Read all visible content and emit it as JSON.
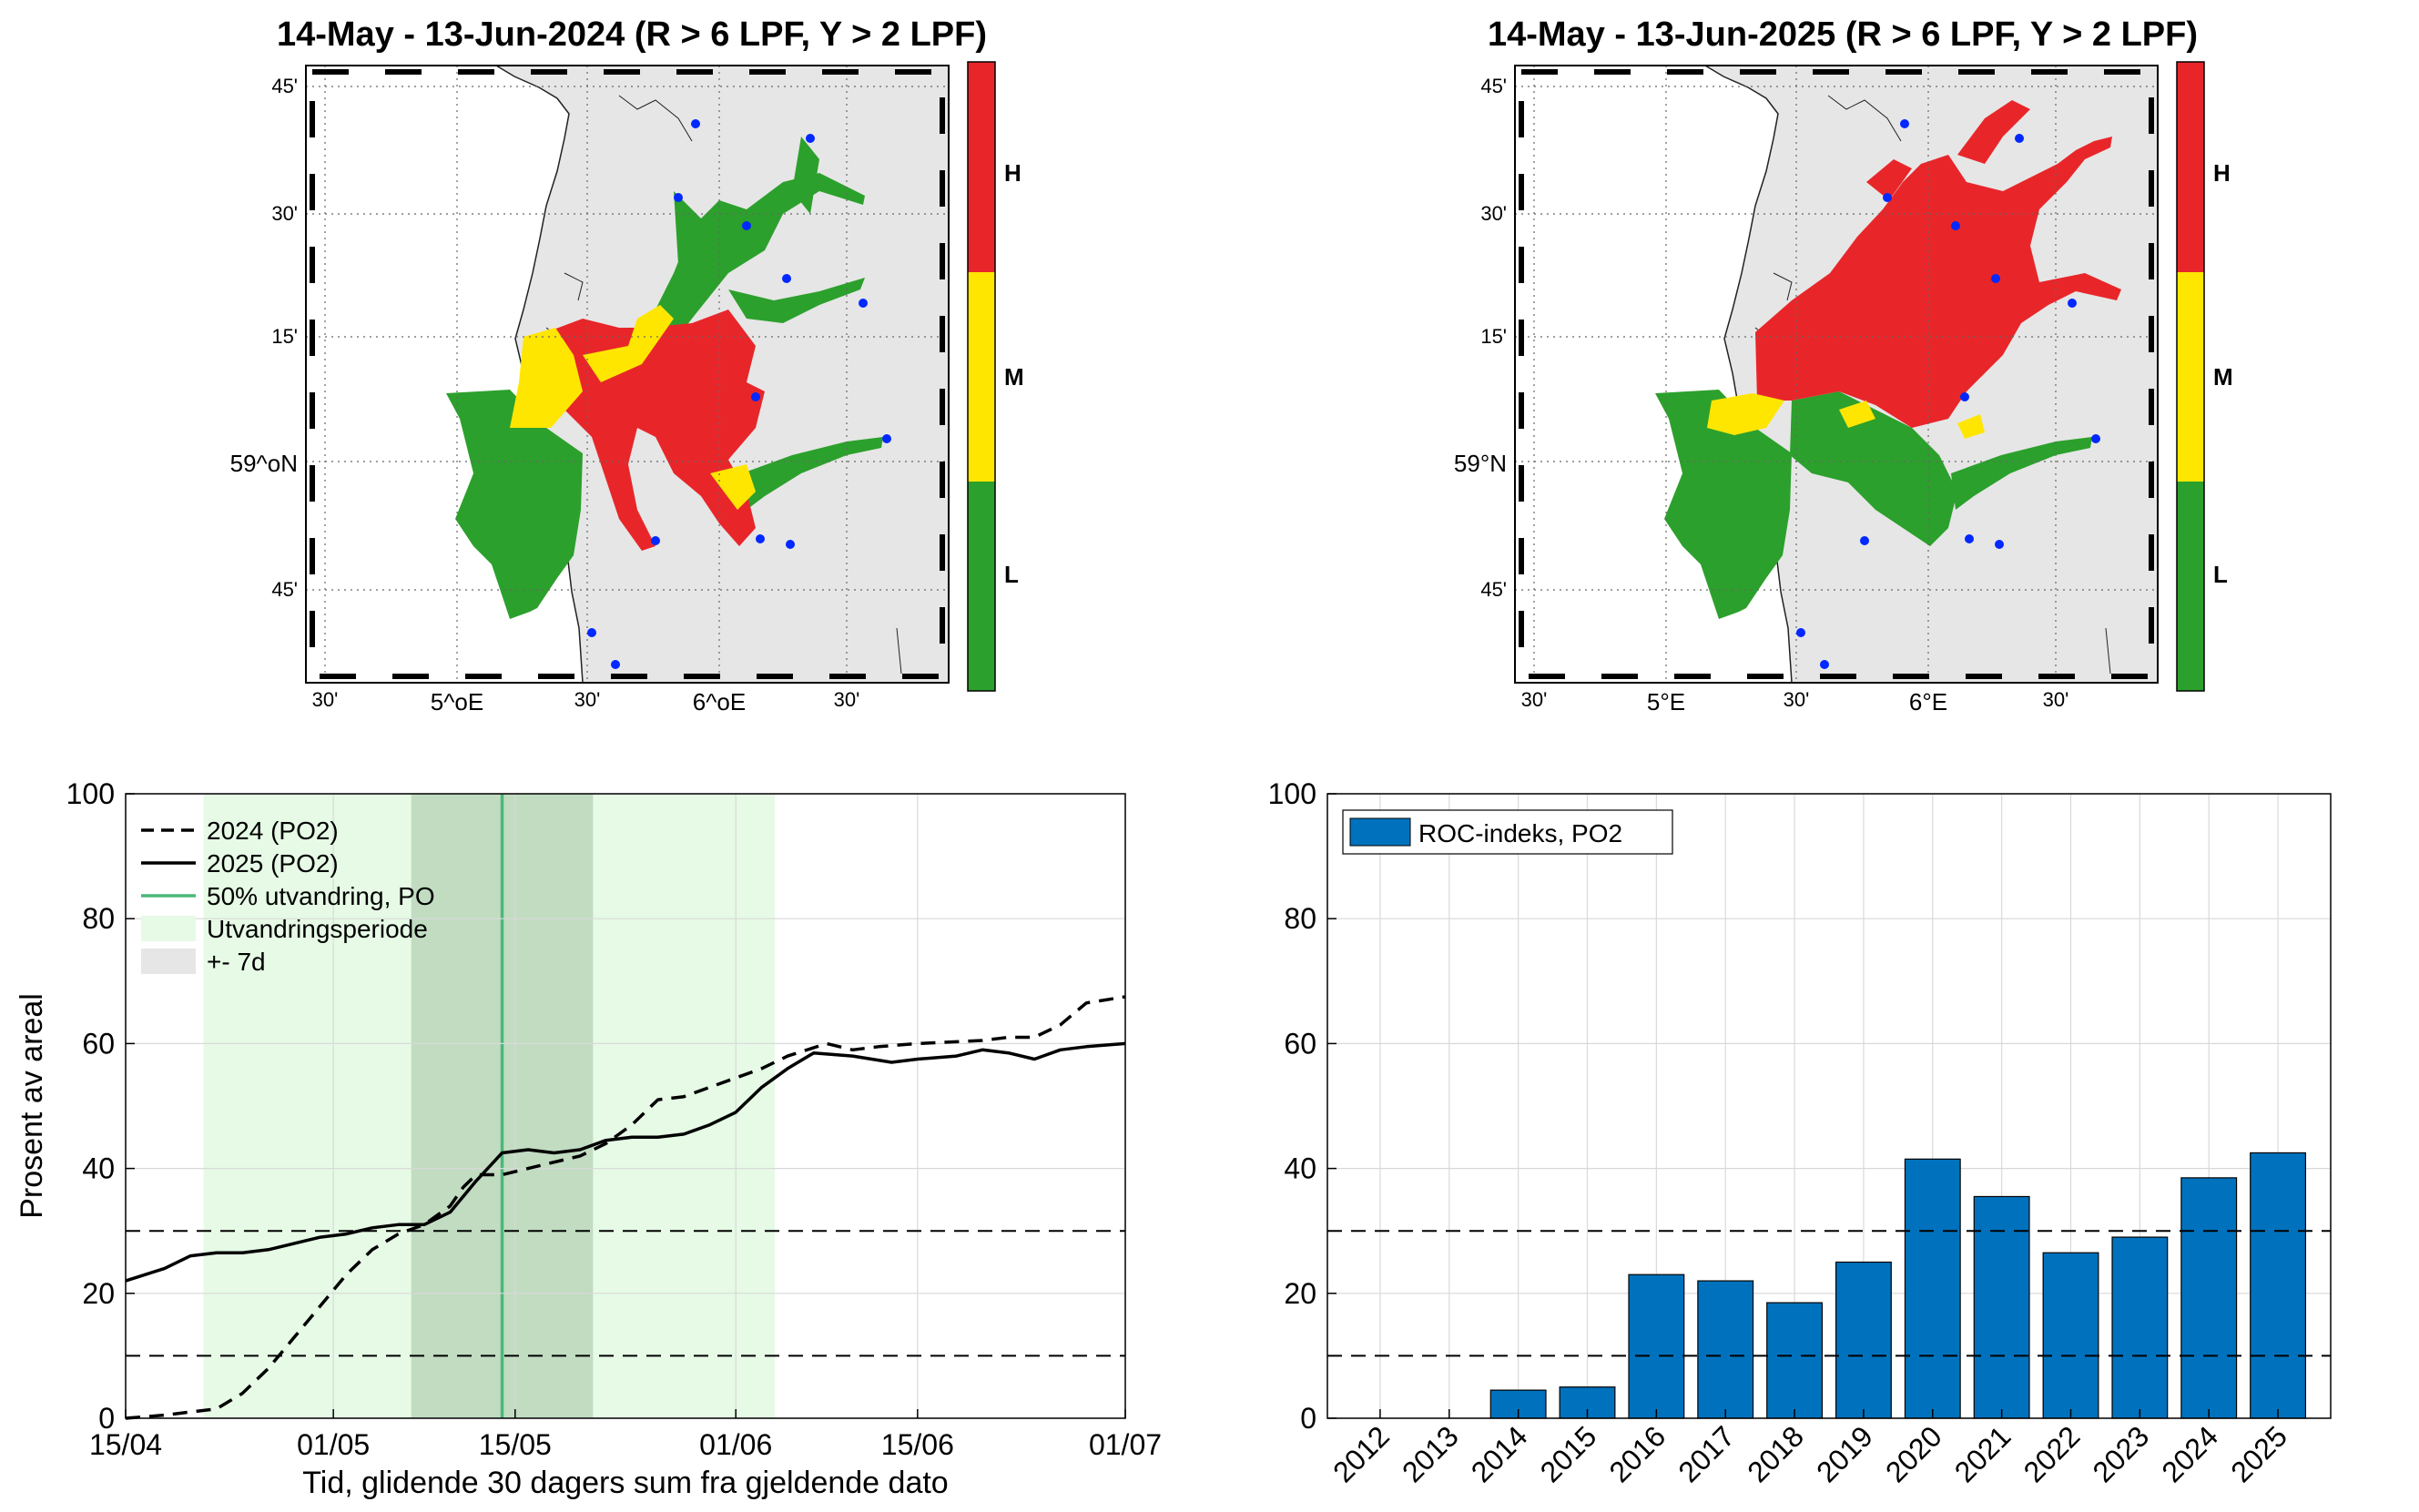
{
  "maps": [
    {
      "title": "14-May - 13-Jun-2024  (R > 6 LPF, Y > 2 LPF)",
      "lat_labels": [
        "45'",
        "30'",
        "15'",
        "59^oN",
        "45'"
      ],
      "lon_labels": [
        "30'",
        "5^oE",
        "30'",
        "6^oE",
        "30'"
      ],
      "colorbar_labels": [
        "H",
        "M",
        "L"
      ]
    },
    {
      "title": "14-May - 13-Jun-2025  (R > 6 LPF, Y > 2 LPF)",
      "lat_labels": [
        "45'",
        "30'",
        "15'",
        "59°N",
        "45'"
      ],
      "lon_labels": [
        "30'",
        "5°E",
        "30'",
        "6°E",
        "30'"
      ],
      "colorbar_labels": [
        "H",
        "M",
        "L"
      ]
    }
  ],
  "colors": {
    "red": "#e8262a",
    "yellow": "#ffe600",
    "green": "#2ca02c",
    "land": "#e6e6e6",
    "bar": "#0072bd",
    "outmigration": "#e6fae6",
    "pm7d": "#b4d2b4",
    "median_line": "#4cb87a"
  },
  "chart_data": [
    {
      "type": "line",
      "xlabel": "Tid, glidende 30 dagers sum fra gjeldende dato",
      "ylabel": "Prosent av areal",
      "x_ticks": [
        "15/04",
        "01/05",
        "15/05",
        "01/06",
        "15/06",
        "01/07"
      ],
      "ylim": [
        0,
        100
      ],
      "y_ticks": [
        0,
        20,
        40,
        60,
        80,
        100
      ],
      "grid": true,
      "legend_position": "top-left",
      "legend": [
        "2024 (PO2)",
        "2025 (PO2)",
        "50% utvandring, PO",
        "Utvandringsperiode",
        "+- 7d"
      ],
      "outmigration_period": [
        "2024-04-21",
        "2024-06-04"
      ],
      "pm7d_period": [
        "2024-05-07",
        "2024-05-21"
      ],
      "median_outmigration_date": "2024-05-14",
      "threshold_lines": [
        10,
        30
      ],
      "series": [
        {
          "name": "2024 (PO2)",
          "style": "dashed",
          "x": [
            "2024-04-15",
            "2024-04-18",
            "2024-04-20",
            "2024-04-22",
            "2024-04-24",
            "2024-04-26",
            "2024-04-28",
            "2024-04-30",
            "2024-05-02",
            "2024-05-04",
            "2024-05-06",
            "2024-05-08",
            "2024-05-10",
            "2024-05-11",
            "2024-05-12",
            "2024-05-14",
            "2024-05-16",
            "2024-05-18",
            "2024-05-20",
            "2024-05-22",
            "2024-05-24",
            "2024-05-26",
            "2024-05-28",
            "2024-05-30",
            "2024-06-01",
            "2024-06-03",
            "2024-06-05",
            "2024-06-08",
            "2024-06-10",
            "2024-06-12",
            "2024-06-15",
            "2024-06-20",
            "2024-06-22",
            "2024-06-24",
            "2024-06-26",
            "2024-06-28",
            "2024-07-01"
          ],
          "y": [
            0,
            0.5,
            1,
            1.5,
            4,
            8,
            13,
            18,
            23,
            27,
            29.5,
            31,
            34,
            37,
            39,
            39,
            40,
            41,
            42,
            44,
            47,
            51,
            51.5,
            53,
            54.5,
            56,
            58,
            60,
            59,
            59.5,
            60,
            60.5,
            61,
            61,
            63,
            66.5,
            67.5
          ]
        },
        {
          "name": "2025 (PO2)",
          "style": "solid",
          "x": [
            "2024-04-15",
            "2024-04-18",
            "2024-04-20",
            "2024-04-22",
            "2024-04-24",
            "2024-04-26",
            "2024-04-28",
            "2024-04-30",
            "2024-05-02",
            "2024-05-04",
            "2024-05-06",
            "2024-05-08",
            "2024-05-10",
            "2024-05-12",
            "2024-05-14",
            "2024-05-16",
            "2024-05-18",
            "2024-05-20",
            "2024-05-22",
            "2024-05-24",
            "2024-05-26",
            "2024-05-28",
            "2024-05-30",
            "2024-06-01",
            "2024-06-03",
            "2024-06-05",
            "2024-06-07",
            "2024-06-10",
            "2024-06-13",
            "2024-06-15",
            "2024-06-18",
            "2024-06-20",
            "2024-06-22",
            "2024-06-24",
            "2024-06-26",
            "2024-06-28",
            "2024-07-01"
          ],
          "y": [
            22,
            24,
            26,
            26.5,
            26.5,
            27,
            28,
            29,
            29.5,
            30.5,
            31,
            31,
            33,
            38,
            42.5,
            43,
            42.5,
            43,
            44.5,
            45,
            45,
            45.5,
            47,
            49,
            53,
            56,
            58.5,
            58,
            57,
            57.5,
            58,
            59,
            58.5,
            57.5,
            59,
            59.5,
            60
          ]
        }
      ]
    },
    {
      "type": "bar",
      "ylim": [
        0,
        100
      ],
      "y_ticks": [
        0,
        20,
        40,
        60,
        80,
        100
      ],
      "grid": true,
      "legend_position": "top-left",
      "legend": [
        "ROC-indeks, PO2"
      ],
      "threshold_lines": [
        10,
        30
      ],
      "categories": [
        "2012",
        "2013",
        "2014",
        "2015",
        "2016",
        "2017",
        "2018",
        "2019",
        "2020",
        "2021",
        "2022",
        "2023",
        "2024",
        "2025"
      ],
      "series": [
        {
          "name": "ROC-indeks, PO2",
          "values": [
            0,
            0,
            4.5,
            5,
            23,
            22,
            18.5,
            25,
            41.5,
            35.5,
            26.5,
            29,
            38.5,
            42.5
          ]
        }
      ]
    }
  ]
}
